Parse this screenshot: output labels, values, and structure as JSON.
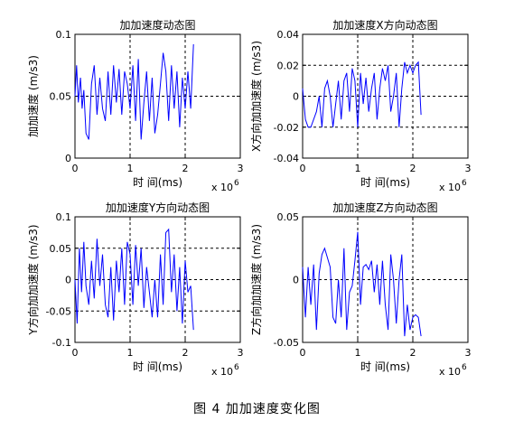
{
  "caption": "图 4  加加速度变化图",
  "chart_data": [
    {
      "type": "line",
      "title": "加加速度动态图",
      "xlabel": "时 间(ms)",
      "ylabel": "加加速度 (m/s3)",
      "x_multiplier": "x 10",
      "x_exponent": "6",
      "xlim": [
        0,
        3
      ],
      "ylim": [
        0,
        0.1
      ],
      "xticks": [
        0,
        1,
        2,
        3
      ],
      "yticks": [
        0,
        0.05,
        0.1
      ],
      "ytick_labels": [
        "0",
        "0.05",
        "0.1"
      ],
      "grid": true,
      "color": "#0000ff",
      "series": [
        {
          "x": [
            0,
            0.03,
            0.06,
            0.1,
            0.13,
            0.16,
            0.2,
            0.25,
            0.3,
            0.35,
            0.4,
            0.45,
            0.5,
            0.55,
            0.6,
            0.65,
            0.7,
            0.75,
            0.8,
            0.85,
            0.9,
            0.95,
            1.0,
            1.05,
            1.1,
            1.15,
            1.2,
            1.25,
            1.3,
            1.35,
            1.4,
            1.45,
            1.5,
            1.55,
            1.6,
            1.65,
            1.7,
            1.75,
            1.8,
            1.85,
            1.9,
            1.95,
            2.0,
            2.05,
            2.1,
            2.15
          ],
          "y": [
            0.05,
            0.075,
            0.045,
            0.065,
            0.04,
            0.055,
            0.02,
            0.015,
            0.06,
            0.075,
            0.035,
            0.065,
            0.04,
            0.03,
            0.07,
            0.035,
            0.075,
            0.045,
            0.072,
            0.035,
            0.07,
            0.06,
            0.04,
            0.075,
            0.03,
            0.08,
            0.015,
            0.045,
            0.07,
            0.03,
            0.065,
            0.02,
            0.035,
            0.06,
            0.085,
            0.07,
            0.03,
            0.075,
            0.04,
            0.07,
            0.025,
            0.065,
            0.04,
            0.07,
            0.04,
            0.092
          ]
        }
      ]
    },
    {
      "type": "line",
      "title": "加加速度X方向动态图",
      "xlabel": "时 间(ms)",
      "ylabel": "X方向加加速度 (m/s3)",
      "x_multiplier": "x 10",
      "x_exponent": "6",
      "xlim": [
        0,
        3
      ],
      "ylim": [
        -0.04,
        0.04
      ],
      "xticks": [
        0,
        1,
        2,
        3
      ],
      "yticks": [
        -0.04,
        -0.02,
        0,
        0.02,
        0.04
      ],
      "ytick_labels": [
        "-0.04",
        "-0.02",
        "0",
        "0.02",
        "0.04"
      ],
      "grid": true,
      "color": "#0000ff",
      "series": [
        {
          "x": [
            0,
            0.05,
            0.1,
            0.15,
            0.2,
            0.25,
            0.3,
            0.35,
            0.4,
            0.45,
            0.5,
            0.55,
            0.6,
            0.65,
            0.7,
            0.75,
            0.8,
            0.85,
            0.9,
            0.95,
            1.0,
            1.05,
            1.1,
            1.15,
            1.2,
            1.25,
            1.3,
            1.35,
            1.4,
            1.45,
            1.5,
            1.55,
            1.6,
            1.65,
            1.7,
            1.75,
            1.8,
            1.85,
            1.9,
            1.95,
            2.0,
            2.05,
            2.1,
            2.15
          ],
          "y": [
            0.005,
            -0.015,
            -0.02,
            -0.02,
            -0.015,
            -0.01,
            0.0,
            -0.02,
            0.005,
            0.01,
            0.0,
            -0.02,
            -0.005,
            0.01,
            -0.015,
            0.01,
            0.015,
            -0.01,
            0.018,
            0.01,
            -0.02,
            0.015,
            -0.005,
            0.012,
            -0.01,
            0.005,
            0.015,
            -0.015,
            0.005,
            0.018,
            0.01,
            0.02,
            -0.01,
            0.0,
            0.015,
            -0.02,
            0.005,
            0.022,
            0.015,
            0.02,
            0.015,
            0.02,
            0.022,
            -0.012
          ]
        }
      ]
    },
    {
      "type": "line",
      "title": "加加速度Y方向动态图",
      "xlabel": "时 间(ms)",
      "ylabel": "Y方向加加速度 (m/s3)",
      "x_multiplier": "x 10",
      "x_exponent": "6",
      "xlim": [
        0,
        3
      ],
      "ylim": [
        -0.1,
        0.1
      ],
      "xticks": [
        0,
        1,
        2,
        3
      ],
      "yticks": [
        -0.1,
        -0.05,
        0,
        0.05,
        0.1
      ],
      "ytick_labels": [
        "-0.1",
        "-0.05",
        "0",
        "0.05",
        "0.1"
      ],
      "grid": true,
      "color": "#0000ff",
      "series": [
        {
          "x": [
            0,
            0.04,
            0.08,
            0.12,
            0.16,
            0.2,
            0.25,
            0.3,
            0.35,
            0.4,
            0.45,
            0.5,
            0.55,
            0.6,
            0.65,
            0.7,
            0.75,
            0.8,
            0.85,
            0.9,
            0.95,
            1.0,
            1.05,
            1.1,
            1.15,
            1.2,
            1.25,
            1.3,
            1.35,
            1.4,
            1.45,
            1.5,
            1.55,
            1.6,
            1.65,
            1.7,
            1.75,
            1.8,
            1.85,
            1.9,
            1.95,
            2.0,
            2.05,
            2.1,
            2.15
          ],
          "y": [
            0.0,
            -0.07,
            0.05,
            -0.02,
            0.06,
            -0.01,
            -0.04,
            0.03,
            -0.03,
            0.065,
            -0.01,
            0.04,
            -0.04,
            -0.06,
            0.02,
            -0.065,
            0.03,
            -0.02,
            0.05,
            -0.04,
            0.06,
            0.04,
            -0.04,
            0.055,
            -0.01,
            0.05,
            -0.045,
            0.02,
            -0.02,
            -0.06,
            0.0,
            -0.06,
            0.04,
            -0.04,
            0.075,
            0.08,
            -0.02,
            0.04,
            -0.05,
            0.02,
            -0.07,
            0.03,
            -0.02,
            -0.01,
            -0.08
          ]
        }
      ]
    },
    {
      "type": "line",
      "title": "加加速度Z方向动态图",
      "xlabel": "时 间(ms)",
      "ylabel": "Z方向加加速度 (m/s3)",
      "x_multiplier": "x 10",
      "x_exponent": "6",
      "xlim": [
        0,
        3
      ],
      "ylim": [
        -0.05,
        0.05
      ],
      "xticks": [
        0,
        1,
        2,
        3
      ],
      "yticks": [
        -0.05,
        0,
        0.05
      ],
      "ytick_labels": [
        "-0.05",
        "0",
        "0.05"
      ],
      "grid": true,
      "color": "#0000ff",
      "series": [
        {
          "x": [
            0,
            0.05,
            0.1,
            0.15,
            0.2,
            0.25,
            0.3,
            0.35,
            0.4,
            0.5,
            0.55,
            0.6,
            0.65,
            0.7,
            0.75,
            0.8,
            0.85,
            0.9,
            0.95,
            1.0,
            1.05,
            1.1,
            1.15,
            1.2,
            1.25,
            1.3,
            1.35,
            1.4,
            1.45,
            1.5,
            1.55,
            1.6,
            1.65,
            1.7,
            1.75,
            1.8,
            1.85,
            1.9,
            1.95,
            2.0,
            2.05,
            2.1,
            2.15
          ],
          "y": [
            0.01,
            -0.03,
            0.01,
            -0.02,
            0.012,
            -0.04,
            0.005,
            0.02,
            0.025,
            0.01,
            -0.03,
            -0.035,
            0.0,
            -0.03,
            0.025,
            -0.04,
            -0.01,
            -0.005,
            0.015,
            0.038,
            -0.02,
            0.01,
            0.012,
            0.008,
            0.015,
            -0.01,
            0.012,
            -0.02,
            0.015,
            -0.02,
            -0.04,
            0.02,
            0.0,
            -0.035,
            0.0,
            0.02,
            -0.045,
            -0.02,
            -0.04,
            -0.03,
            -0.028,
            -0.03,
            -0.045
          ]
        }
      ]
    }
  ]
}
